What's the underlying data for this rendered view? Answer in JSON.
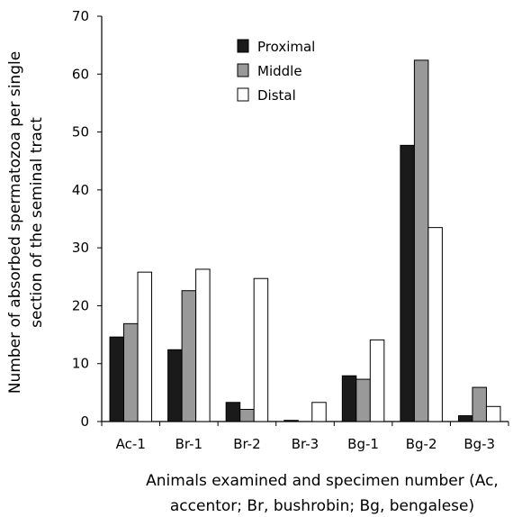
{
  "chart_data": {
    "type": "bar",
    "title": "",
    "categories": [
      "Ac-1",
      "Br-1",
      "Br-2",
      "Br-3",
      "Bg-1",
      "Bg-2",
      "Bg-3"
    ],
    "series": [
      {
        "name": "Proximal",
        "color": "#1a1a1a",
        "values": [
          14.6,
          12.4,
          3.3,
          0.2,
          7.9,
          47.7,
          1.0
        ]
      },
      {
        "name": "Middle",
        "color": "#999999",
        "values": [
          16.9,
          22.6,
          2.1,
          0,
          7.3,
          62.4,
          5.9
        ]
      },
      {
        "name": "Distal",
        "color": "#ffffff",
        "values": [
          25.8,
          26.3,
          24.7,
          3.3,
          14.1,
          33.5,
          2.6
        ]
      }
    ],
    "ylim": [
      0,
      70
    ],
    "yticks": [
      0,
      10,
      20,
      30,
      40,
      50,
      60,
      70
    ],
    "ylabel_lines": [
      "Number of absorbed spermatozoa per single",
      "section of the seminal tract"
    ],
    "xlabel_lines": [
      "Animals examined and specimen number (Ac,",
      "accentor; Br, bushrobin; Bg, bengalese)"
    ],
    "grid": false,
    "legend_position": "top-center"
  }
}
